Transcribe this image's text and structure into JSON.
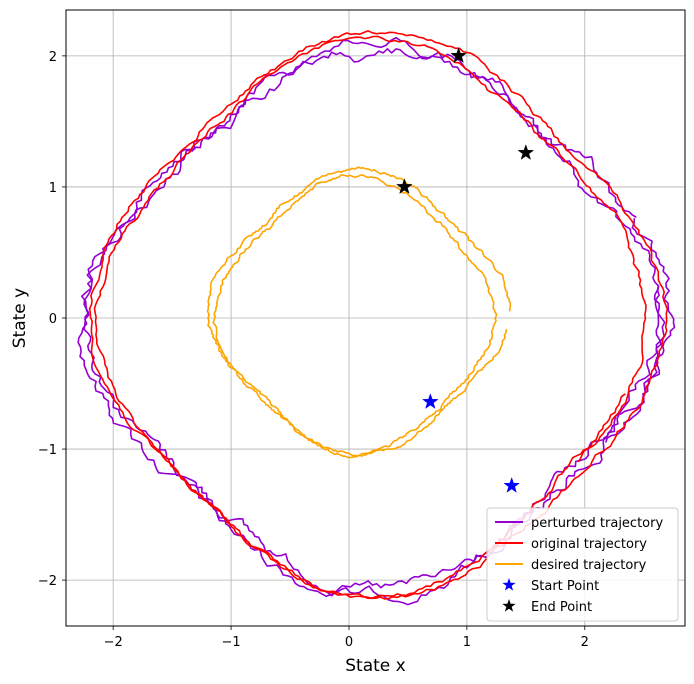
{
  "chart_data": {
    "type": "line",
    "title": "",
    "xlabel": "State x",
    "ylabel": "State y",
    "xlim": [
      -2.4,
      2.85
    ],
    "ylim": [
      -2.35,
      2.35
    ],
    "grid": true,
    "legend_position": "bottom-right",
    "x_ticks": [
      -2,
      -1,
      0,
      1,
      2
    ],
    "y_ticks": [
      -2,
      -1,
      0,
      1,
      2
    ],
    "x_tick_labels": [
      "−2",
      "−1",
      "0",
      "1",
      "2"
    ],
    "y_tick_labels": [
      "−2",
      "−1",
      "0",
      "1",
      "2"
    ],
    "colors": {
      "perturbed": "#9400D3",
      "original": "#FF0000",
      "desired": "#FFA500",
      "start": "#0000FF",
      "end": "#000000"
    },
    "series": [
      {
        "name": "perturbed trajectory",
        "kind": "line",
        "color_key": "perturbed",
        "loops": [
          {
            "cx": 0.2,
            "cy": -0.02,
            "rx": 2.3,
            "ry": 1.98,
            "phase0": -0.5,
            "turns": 1.1,
            "wobble": 0.07
          },
          {
            "cx": 0.28,
            "cy": 0.0,
            "rx": 2.32,
            "ry": 1.95,
            "phase0": 0.4,
            "turns": 1.0,
            "wobble": 0.07
          }
        ]
      },
      {
        "name": "original trajectory",
        "kind": "line",
        "color_key": "original",
        "loops": [
          {
            "cx": 0.2,
            "cy": 0.0,
            "rx": 2.2,
            "ry": 2.02,
            "phase0": -0.6,
            "turns": 1.05,
            "wobble": 0.03
          },
          {
            "cx": 0.25,
            "cy": 0.02,
            "rx": 2.3,
            "ry": 2.05,
            "phase0": 0.5,
            "turns": 1.0,
            "wobble": 0.03
          }
        ]
      },
      {
        "name": "desired trajectory",
        "kind": "line",
        "color_key": "desired",
        "loops": [
          {
            "cx": 0.05,
            "cy": 0.02,
            "rx": 1.12,
            "ry": 1.0,
            "phase0": -0.95,
            "turns": 1.0,
            "wobble": 0.02
          },
          {
            "cx": 0.08,
            "cy": 0.05,
            "rx": 1.2,
            "ry": 1.02,
            "phase0": 0.0,
            "turns": 0.98,
            "wobble": 0.02
          }
        ]
      },
      {
        "name": "Start Point",
        "kind": "marker",
        "color_key": "start",
        "points": [
          [
            0.69,
            -0.64
          ],
          [
            1.38,
            -1.28
          ]
        ]
      },
      {
        "name": "End Point",
        "kind": "marker",
        "color_key": "end",
        "points": [
          [
            0.47,
            1.0
          ],
          [
            0.93,
            2.0
          ],
          [
            1.5,
            1.26
          ]
        ]
      }
    ]
  }
}
